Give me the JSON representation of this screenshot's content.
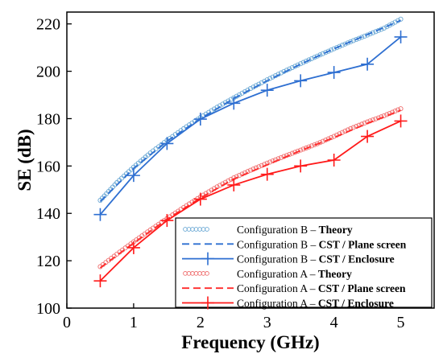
{
  "chart_data": {
    "type": "line",
    "xlabel": "Frequency (GHz)",
    "ylabel": "SE (dB)",
    "xlim": [
      0,
      5.5
    ],
    "ylim": [
      100,
      225
    ],
    "x_ticks": [
      0,
      1,
      2,
      3,
      4,
      5
    ],
    "y_ticks": [
      100,
      120,
      140,
      160,
      180,
      200,
      220
    ],
    "legend_position": "bottom-right",
    "grid": false,
    "series": [
      {
        "name_prefix": "Configuration B – ",
        "name_suffix": "Theory",
        "color": "#6aa8d4",
        "style": "circles",
        "x": [
          0.5,
          0.75,
          1.0,
          1.25,
          1.5,
          1.75,
          2.0,
          2.25,
          2.5,
          2.75,
          3.0,
          3.25,
          3.5,
          3.75,
          4.0,
          4.25,
          4.5,
          4.75,
          5.0
        ],
        "y": [
          145.5,
          153.0,
          159.5,
          165.5,
          170.8,
          175.8,
          180.5,
          184.8,
          188.8,
          192.7,
          196.4,
          199.9,
          203.2,
          206.4,
          209.5,
          212.5,
          215.3,
          218.2,
          222.0
        ]
      },
      {
        "name_prefix": "Configuration B – ",
        "name_suffix": "CST / Plane screen",
        "color": "#2e6fd1",
        "style": "dashed",
        "x": [
          0.5,
          1.0,
          1.5,
          2.0,
          2.5,
          3.0,
          3.5,
          4.0,
          4.5,
          5.0
        ],
        "y": [
          145.0,
          159.0,
          170.5,
          180.0,
          188.5,
          196.0,
          203.0,
          209.5,
          215.5,
          221.5
        ]
      },
      {
        "name_prefix": "Configuration B – ",
        "name_suffix": "CST / Enclosure",
        "color": "#2e6fd1",
        "style": "solid-plus",
        "x": [
          0.5,
          1.0,
          1.5,
          2.0,
          2.5,
          3.0,
          3.5,
          4.0,
          4.5,
          5.0
        ],
        "y": [
          139.5,
          156.0,
          169.5,
          179.8,
          186.5,
          192.0,
          196.0,
          199.5,
          203.0,
          214.5
        ]
      },
      {
        "name_prefix": "Configuration A – ",
        "name_suffix": "Theory",
        "color": "#ef6f6f",
        "style": "circles",
        "x": [
          0.5,
          0.75,
          1.0,
          1.25,
          1.5,
          1.75,
          2.0,
          2.25,
          2.5,
          2.75,
          3.0,
          3.25,
          3.5,
          3.75,
          4.0,
          4.25,
          4.5,
          4.75,
          5.0
        ],
        "y": [
          117.5,
          122.8,
          128.0,
          133.0,
          137.8,
          142.5,
          147.0,
          151.2,
          155.0,
          158.2,
          161.2,
          164.0,
          166.7,
          169.4,
          172.5,
          175.8,
          178.6,
          181.2,
          184.2
        ]
      },
      {
        "name_prefix": "Configuration A – ",
        "name_suffix": "CST / Plane screen",
        "color": "#ff2a2a",
        "style": "dashed",
        "x": [
          0.5,
          1.0,
          1.5,
          2.0,
          2.5,
          3.0,
          3.5,
          4.0,
          4.5,
          5.0
        ],
        "y": [
          117.0,
          127.5,
          137.5,
          146.5,
          154.5,
          160.5,
          166.5,
          172.0,
          178.0,
          183.5
        ]
      },
      {
        "name_prefix": "Configuration A – ",
        "name_suffix": "CST / Enclosure",
        "color": "#ff1a1a",
        "style": "solid-plus",
        "x": [
          0.5,
          1.0,
          1.5,
          2.0,
          2.5,
          3.0,
          3.5,
          4.0,
          4.5,
          5.0
        ],
        "y": [
          111.5,
          125.5,
          137.0,
          146.0,
          152.0,
          156.5,
          160.0,
          162.5,
          172.5,
          179.0
        ]
      }
    ]
  }
}
